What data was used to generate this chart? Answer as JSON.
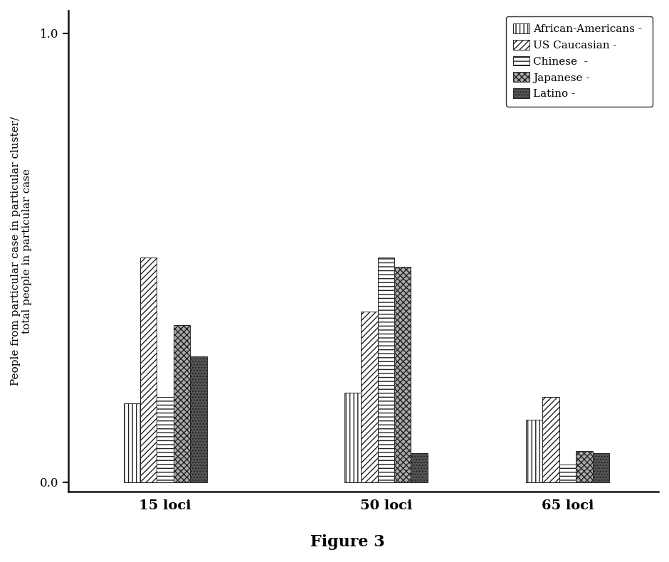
{
  "groups": [
    "15 loci",
    "50 loci",
    "65 loci"
  ],
  "series": [
    {
      "label": "African-Americans",
      "hatch": "|||",
      "facecolor": "white",
      "edgecolor": "#222222",
      "values": [
        0.175,
        0.2,
        0.14
      ]
    },
    {
      "label": "US Caucasian",
      "hatch": "////",
      "facecolor": "white",
      "edgecolor": "#222222",
      "values": [
        0.5,
        0.38,
        0.19
      ]
    },
    {
      "label": "Chinese",
      "hatch": "---",
      "facecolor": "white",
      "edgecolor": "#222222",
      "values": [
        0.19,
        0.5,
        0.04
      ]
    },
    {
      "label": "Japanese",
      "hatch": "xxxx",
      "facecolor": "#aaaaaa",
      "edgecolor": "#222222",
      "values": [
        0.35,
        0.48,
        0.07
      ]
    },
    {
      "label": "Latino",
      "hatch": "....",
      "facecolor": "#555555",
      "edgecolor": "#222222",
      "values": [
        0.28,
        0.065,
        0.065
      ]
    }
  ],
  "ylabel_line1": "People from particular case in particular cluster/",
  "ylabel_line2": "total people in particular case",
  "ylim": [
    -0.02,
    1.05
  ],
  "yticks": [
    0.0,
    1.0
  ],
  "yticklabels": [
    "0.0",
    "1.0"
  ],
  "figure_label": "Figure 3",
  "background_color": "#ffffff",
  "bar_width": 0.055,
  "group_centers": [
    0.27,
    1.0,
    1.6
  ],
  "legend_labels": [
    "African-Americans - ",
    "US Caucasian - ",
    "Chinese  - ",
    "Japanese - ",
    "Latino - "
  ]
}
